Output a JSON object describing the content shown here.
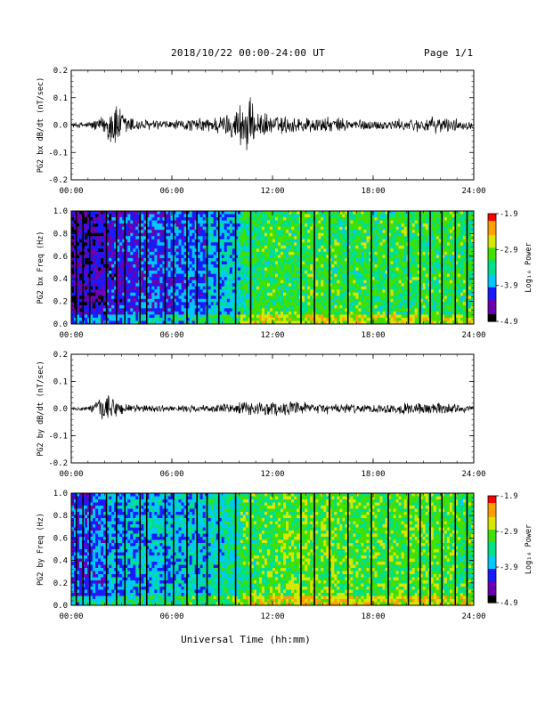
{
  "header": {
    "date_range": "2018/10/22  00:00-24:00 UT",
    "page": "Page 1/1"
  },
  "xaxis": {
    "label": "Universal Time (hh:mm)",
    "ticks": [
      "00:00",
      "06:00",
      "12:00",
      "18:00",
      "24:00"
    ]
  },
  "colorbar": {
    "label": "Log₁₀ Power",
    "ticks": [
      "-1.9",
      "-2.9",
      "-3.9",
      "-4.9"
    ],
    "range": [
      -4.9,
      -1.9
    ],
    "colors": [
      "#000000",
      "#6a00b0",
      "#1a1aff",
      "#00c8ff",
      "#00e08a",
      "#40e000",
      "#d8e600",
      "#ffa000",
      "#ff0000"
    ]
  },
  "chart_data": [
    {
      "type": "line",
      "ylabel": "PG2 bx dB/dt (nT/sec)",
      "ylim": [
        -0.2,
        0.2
      ],
      "yticks": [
        "0.2",
        "0.1",
        "0.0",
        "-0.1",
        "-0.2"
      ],
      "x": [
        0.0,
        1.0,
        2.0,
        2.5,
        3.0,
        4.0,
        6.0,
        8.0,
        9.5,
        10.5,
        11.0,
        12.0,
        14.0,
        16.0,
        18.0,
        20.0,
        22.0,
        24.0
      ],
      "envelope": [
        0.01,
        0.015,
        0.04,
        0.12,
        0.06,
        0.025,
        0.02,
        0.03,
        0.05,
        0.13,
        0.06,
        0.04,
        0.035,
        0.03,
        0.02,
        0.025,
        0.035,
        0.015
      ],
      "color": "#000000"
    },
    {
      "type": "heatmap",
      "ylabel": "PG2 bx Freq (Hz)",
      "ylim": [
        0.0,
        1.0
      ],
      "yticks": [
        "1.0",
        "0.8",
        "0.6",
        "0.4",
        "0.2",
        "0.0"
      ],
      "xlim": [
        0,
        24
      ],
      "log10_power_levels_by_hour": [
        -4.5,
        -4.4,
        -4.3,
        -4.2,
        -4.1,
        -4.1,
        -4.0,
        -4.0,
        -3.8,
        -3.7,
        -3.3,
        -3.2,
        -3.2,
        -3.2,
        -3.1,
        -3.2,
        -3.2,
        -3.2,
        -3.2,
        -3.2,
        -3.2,
        -3.2,
        -3.2,
        -3.2
      ],
      "data_gap_hours": [
        0.3,
        0.7,
        1.1,
        2.1,
        2.7,
        3.2,
        4.1,
        4.5,
        5.6,
        6.1,
        6.9,
        7.5,
        8.1,
        8.8,
        9.8,
        10.7,
        13.7,
        14.5,
        15.4,
        16.5,
        17.9,
        18.9,
        20.1,
        20.8,
        21.4,
        22.1,
        22.9,
        23.6
      ]
    },
    {
      "type": "line",
      "ylabel": "PG2 by dB/dt (nT/sec)",
      "ylim": [
        -0.2,
        0.2
      ],
      "yticks": [
        "0.2",
        "0.1",
        "0.0",
        "-0.1",
        "-0.2"
      ],
      "x": [
        0.0,
        1.0,
        1.5,
        2.0,
        2.5,
        3.0,
        4.0,
        6.0,
        8.0,
        10.0,
        11.0,
        12.0,
        14.0,
        16.0,
        18.0,
        20.0,
        22.0,
        24.0
      ],
      "envelope": [
        0.005,
        0.01,
        0.03,
        0.06,
        0.04,
        0.03,
        0.015,
        0.012,
        0.015,
        0.025,
        0.03,
        0.03,
        0.025,
        0.02,
        0.018,
        0.025,
        0.025,
        0.012
      ],
      "color": "#000000"
    },
    {
      "type": "heatmap",
      "ylabel": "PG2 by Freq (Hz)",
      "ylim": [
        0.0,
        1.0
      ],
      "yticks": [
        "1.0",
        "0.8",
        "0.6",
        "0.4",
        "0.2",
        "0.0"
      ],
      "xlim": [
        0,
        24
      ],
      "log10_power_levels_by_hour": [
        -4.1,
        -4.0,
        -3.9,
        -3.8,
        -3.8,
        -3.8,
        -3.7,
        -3.7,
        -3.6,
        -3.5,
        -3.2,
        -3.1,
        -3.0,
        -3.0,
        -3.0,
        -3.0,
        -3.0,
        -3.1,
        -3.1,
        -3.1,
        -3.1,
        -3.1,
        -3.1,
        -3.2
      ],
      "data_gap_hours": [
        0.3,
        0.7,
        1.1,
        2.1,
        2.7,
        3.2,
        4.1,
        4.5,
        5.6,
        6.1,
        6.9,
        7.5,
        8.1,
        8.8,
        9.8,
        10.7,
        13.7,
        14.5,
        15.4,
        16.5,
        17.9,
        18.9,
        20.1,
        20.8,
        21.4,
        22.1,
        22.9,
        23.6
      ]
    }
  ]
}
